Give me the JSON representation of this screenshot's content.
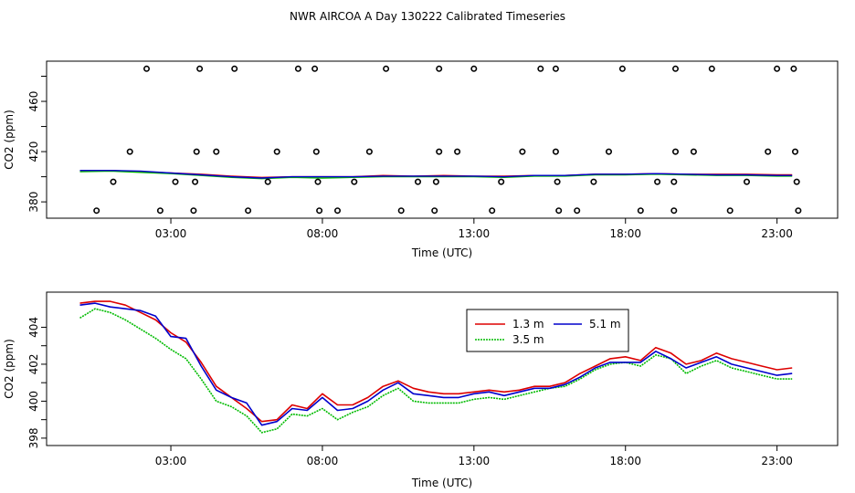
{
  "title": "NWR AIRCOA A  Day 130222  Calibrated Timeseries",
  "chart_data": [
    {
      "type": "scatter",
      "name": "top-panel",
      "xlabel": "Time (UTC)",
      "ylabel": "CO2 (ppm)",
      "xlim": [
        -1.1,
        25.0
      ],
      "ylim": [
        367,
        492
      ],
      "xticks": [
        3,
        8,
        13,
        18,
        23
      ],
      "xtick_labels": [
        "03:00",
        "08:00",
        "13:00",
        "18:00",
        "23:00"
      ],
      "yticks": [
        380,
        400,
        420,
        440,
        460,
        480
      ],
      "ytick_labels": [
        "380",
        "",
        "420",
        "",
        "460",
        ""
      ],
      "outlier_points": [
        {
          "x": 2.2,
          "y": 486
        },
        {
          "x": 3.95,
          "y": 486
        },
        {
          "x": 5.1,
          "y": 486
        },
        {
          "x": 7.2,
          "y": 486
        },
        {
          "x": 7.75,
          "y": 486
        },
        {
          "x": 10.1,
          "y": 486
        },
        {
          "x": 11.85,
          "y": 486
        },
        {
          "x": 13.0,
          "y": 486
        },
        {
          "x": 15.2,
          "y": 486
        },
        {
          "x": 15.7,
          "y": 486
        },
        {
          "x": 17.9,
          "y": 486
        },
        {
          "x": 19.65,
          "y": 486
        },
        {
          "x": 20.85,
          "y": 486
        },
        {
          "x": 23.0,
          "y": 486
        },
        {
          "x": 23.55,
          "y": 486
        },
        {
          "x": 1.65,
          "y": 420
        },
        {
          "x": 3.85,
          "y": 420
        },
        {
          "x": 4.5,
          "y": 420
        },
        {
          "x": 6.5,
          "y": 420
        },
        {
          "x": 7.8,
          "y": 420
        },
        {
          "x": 9.55,
          "y": 420
        },
        {
          "x": 11.85,
          "y": 420
        },
        {
          "x": 12.45,
          "y": 420
        },
        {
          "x": 14.6,
          "y": 420
        },
        {
          "x": 15.7,
          "y": 420
        },
        {
          "x": 17.45,
          "y": 420
        },
        {
          "x": 19.65,
          "y": 420
        },
        {
          "x": 20.25,
          "y": 420
        },
        {
          "x": 22.7,
          "y": 420
        },
        {
          "x": 23.6,
          "y": 420
        },
        {
          "x": 1.1,
          "y": 396
        },
        {
          "x": 3.15,
          "y": 396
        },
        {
          "x": 3.8,
          "y": 396
        },
        {
          "x": 6.2,
          "y": 396
        },
        {
          "x": 7.85,
          "y": 396
        },
        {
          "x": 9.05,
          "y": 396
        },
        {
          "x": 11.15,
          "y": 396
        },
        {
          "x": 11.75,
          "y": 396
        },
        {
          "x": 13.9,
          "y": 396
        },
        {
          "x": 15.75,
          "y": 396
        },
        {
          "x": 16.95,
          "y": 396
        },
        {
          "x": 19.05,
          "y": 396
        },
        {
          "x": 19.6,
          "y": 396
        },
        {
          "x": 22.0,
          "y": 396
        },
        {
          "x": 23.65,
          "y": 396
        },
        {
          "x": 0.55,
          "y": 373
        },
        {
          "x": 2.65,
          "y": 373
        },
        {
          "x": 3.75,
          "y": 373
        },
        {
          "x": 5.55,
          "y": 373
        },
        {
          "x": 7.9,
          "y": 373
        },
        {
          "x": 8.5,
          "y": 373
        },
        {
          "x": 10.6,
          "y": 373
        },
        {
          "x": 11.7,
          "y": 373
        },
        {
          "x": 13.6,
          "y": 373
        },
        {
          "x": 15.8,
          "y": 373
        },
        {
          "x": 16.4,
          "y": 373
        },
        {
          "x": 18.5,
          "y": 373
        },
        {
          "x": 19.6,
          "y": 373
        },
        {
          "x": 21.45,
          "y": 373
        },
        {
          "x": 23.7,
          "y": 373
        }
      ],
      "series": [
        {
          "name": "1.3 m",
          "color": "#dd0000",
          "x": [
            0,
            1,
            2,
            3,
            4,
            5,
            6,
            7,
            8,
            9,
            10,
            11,
            12,
            13,
            14,
            15,
            16,
            17,
            18,
            19,
            20,
            21,
            22,
            23,
            23.5
          ],
          "y": [
            405,
            405,
            404,
            403,
            402,
            400.5,
            399.5,
            400,
            400,
            400,
            401,
            400.5,
            401,
            400.5,
            400.5,
            401,
            401,
            402,
            402,
            402.5,
            402,
            402,
            402,
            401.5,
            401.5
          ]
        },
        {
          "name": "3.5 m",
          "color": "#00bb00",
          "x": [
            0,
            1,
            2,
            3,
            4,
            5,
            6,
            7,
            8,
            9,
            10,
            11,
            12,
            13,
            14,
            15,
            16,
            17,
            18,
            19,
            20,
            21,
            22,
            23,
            23.5
          ],
          "y": [
            404,
            404.5,
            403.5,
            402.5,
            401,
            399.5,
            398.5,
            399.5,
            399,
            399.5,
            400,
            400,
            400,
            400,
            399.5,
            400.5,
            400.5,
            401.5,
            401.5,
            402,
            401.5,
            401,
            401,
            400.5,
            400.5
          ]
        },
        {
          "name": "5.1 m",
          "color": "#0000cc",
          "x": [
            0,
            1,
            2,
            3,
            4,
            5,
            6,
            7,
            8,
            9,
            10,
            11,
            12,
            13,
            14,
            15,
            16,
            17,
            18,
            19,
            20,
            21,
            22,
            23,
            23.5
          ],
          "y": [
            405,
            405,
            404.5,
            403,
            401.5,
            400,
            399,
            400,
            400,
            400,
            400.5,
            400.5,
            400.5,
            400.5,
            400,
            401,
            401,
            402,
            402,
            402.5,
            402,
            401.5,
            401.5,
            401,
            401
          ]
        }
      ]
    },
    {
      "type": "line",
      "name": "bottom-panel",
      "xlabel": "Time (UTC)",
      "ylabel": "CO2 (ppm)",
      "xlim": [
        -1.1,
        25.0
      ],
      "ylim": [
        397.6,
        405.9
      ],
      "xticks": [
        3,
        8,
        13,
        18,
        23
      ],
      "xtick_labels": [
        "03:00",
        "08:00",
        "13:00",
        "18:00",
        "23:00"
      ],
      "yticks": [
        398,
        399,
        400,
        401,
        402,
        403,
        404
      ],
      "ytick_labels": [
        "398",
        "",
        "400",
        "",
        "402",
        "",
        "404"
      ],
      "legend": {
        "location": "top-center",
        "entries": [
          "1.3 m",
          "3.5 m",
          "5.1 m"
        ]
      },
      "series": [
        {
          "name": "1.3 m",
          "color": "#dd0000",
          "x": [
            0,
            0.5,
            1,
            1.5,
            2,
            2.5,
            3,
            3.5,
            4,
            4.5,
            5,
            5.5,
            6,
            6.5,
            7,
            7.5,
            8,
            8.5,
            9,
            9.5,
            10,
            10.5,
            11,
            11.5,
            12,
            12.5,
            13,
            13.5,
            14,
            14.5,
            15,
            15.5,
            16,
            16.5,
            17,
            17.5,
            18,
            18.5,
            19,
            19.5,
            20,
            20.5,
            21,
            21.5,
            22,
            22.5,
            23,
            23.5
          ],
          "y": [
            405.3,
            405.4,
            405.4,
            405.2,
            404.8,
            404.4,
            403.7,
            403.2,
            402.1,
            400.8,
            400.2,
            399.6,
            398.9,
            399.0,
            399.8,
            399.6,
            400.4,
            399.8,
            399.8,
            400.2,
            400.8,
            401.1,
            400.7,
            400.5,
            400.4,
            400.4,
            400.5,
            400.6,
            400.5,
            400.6,
            400.8,
            400.8,
            401.0,
            401.5,
            401.9,
            402.3,
            402.4,
            402.2,
            402.9,
            402.6,
            402.0,
            402.2,
            402.6,
            402.3,
            402.1,
            401.9,
            401.7,
            401.8
          ]
        },
        {
          "name": "3.5 m",
          "color": "#00bb00",
          "x": [
            0,
            0.5,
            1,
            1.5,
            2,
            2.5,
            3,
            3.5,
            4,
            4.5,
            5,
            5.5,
            6,
            6.5,
            7,
            7.5,
            8,
            8.5,
            9,
            9.5,
            10,
            10.5,
            11,
            11.5,
            12,
            12.5,
            13,
            13.5,
            14,
            14.5,
            15,
            15.5,
            16,
            16.5,
            17,
            17.5,
            18,
            18.5,
            19,
            19.5,
            20,
            20.5,
            21,
            21.5,
            22,
            22.5,
            23,
            23.5
          ],
          "y": [
            404.5,
            405.0,
            404.8,
            404.4,
            403.9,
            403.4,
            402.8,
            402.3,
            401.2,
            400.0,
            399.7,
            399.2,
            398.3,
            398.5,
            399.3,
            399.2,
            399.6,
            399.0,
            399.4,
            399.7,
            400.3,
            400.7,
            400.0,
            399.9,
            399.9,
            399.9,
            400.1,
            400.2,
            400.1,
            400.3,
            400.5,
            400.7,
            400.8,
            401.2,
            401.7,
            402.0,
            402.1,
            401.9,
            402.5,
            402.3,
            401.5,
            401.9,
            402.2,
            401.8,
            401.6,
            401.4,
            401.2,
            401.2
          ]
        },
        {
          "name": "5.1 m",
          "color": "#0000cc",
          "x": [
            0,
            0.5,
            1,
            1.5,
            2,
            2.5,
            3,
            3.5,
            4,
            4.5,
            5,
            5.5,
            6,
            6.5,
            7,
            7.5,
            8,
            8.5,
            9,
            9.5,
            10,
            10.5,
            11,
            11.5,
            12,
            12.5,
            13,
            13.5,
            14,
            14.5,
            15,
            15.5,
            16,
            16.5,
            17,
            17.5,
            18,
            18.5,
            19,
            19.5,
            20,
            20.5,
            21,
            21.5,
            22,
            22.5,
            23,
            23.5
          ],
          "y": [
            405.2,
            405.3,
            405.1,
            405.0,
            404.9,
            404.6,
            403.5,
            403.4,
            401.9,
            400.6,
            400.2,
            399.9,
            398.7,
            398.9,
            399.6,
            399.5,
            400.2,
            399.5,
            399.6,
            400.0,
            400.6,
            401.0,
            400.4,
            400.3,
            400.2,
            400.2,
            400.4,
            400.5,
            400.3,
            400.5,
            400.7,
            400.7,
            400.9,
            401.3,
            401.8,
            402.1,
            402.1,
            402.1,
            402.7,
            402.3,
            401.8,
            402.1,
            402.4,
            402.0,
            401.8,
            401.6,
            401.4,
            401.5
          ]
        }
      ]
    }
  ]
}
